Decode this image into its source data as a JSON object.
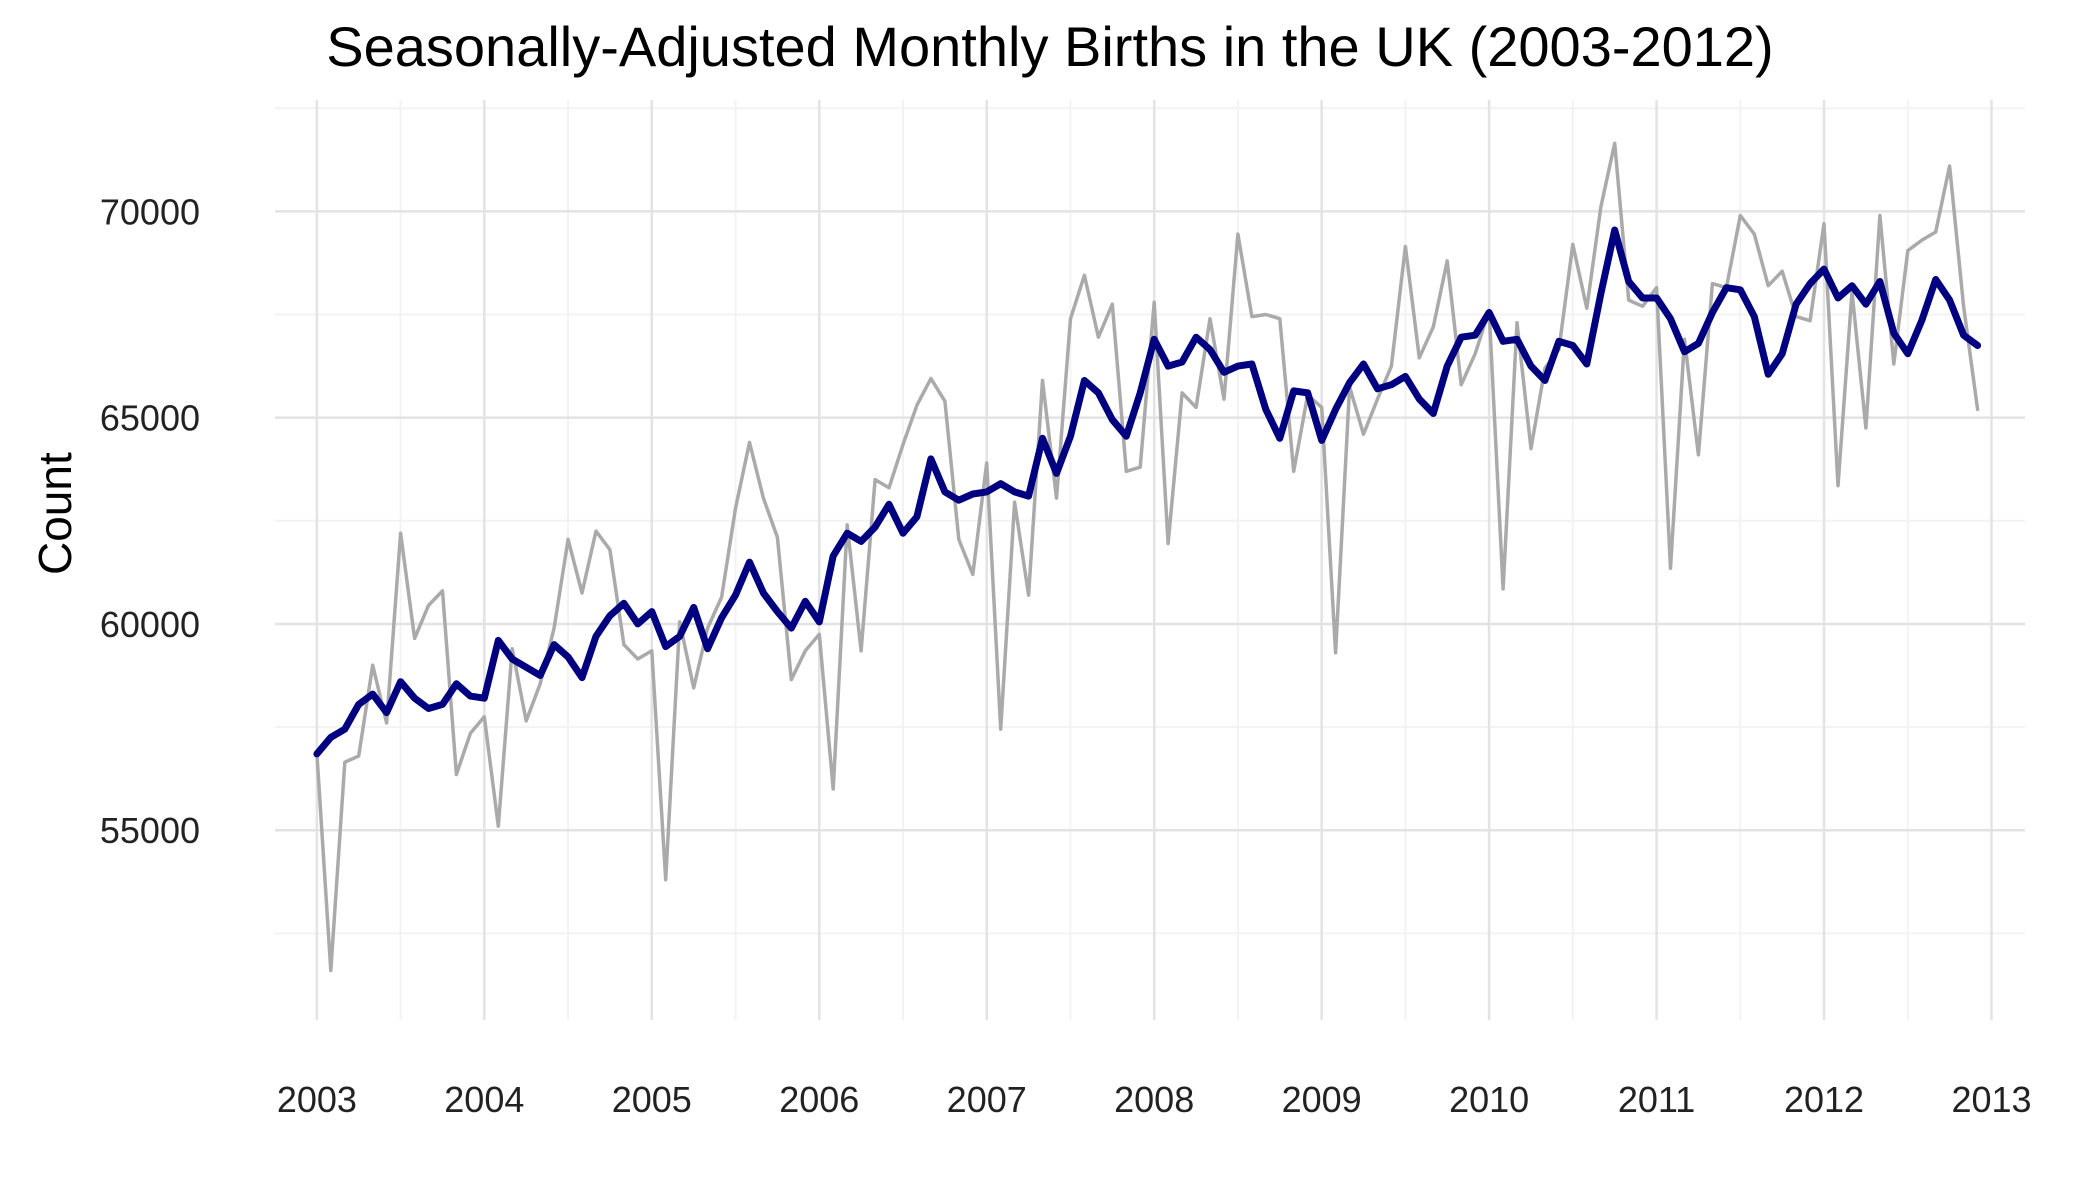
{
  "chart_data": {
    "type": "line",
    "title": "Seasonally-Adjusted Monthly Births in the UK (2003-2012)",
    "xlabel": "",
    "ylabel": "Count",
    "xlim": [
      2002.75,
      2013.2
    ],
    "ylim": [
      50400,
      72700
    ],
    "x_ticks": [
      "2003",
      "2004",
      "2005",
      "2006",
      "2007",
      "2008",
      "2009",
      "2010",
      "2011",
      "2012",
      "2013"
    ],
    "y_ticks": [
      "55000",
      "60000",
      "65000",
      "70000"
    ],
    "grid": true,
    "legend": "none",
    "start_year": 2003,
    "series": [
      {
        "role": "raw",
        "color": "#aaaaaa",
        "values": [
          56850,
          51600,
          56650,
          56800,
          59000,
          57600,
          62200,
          59650,
          60450,
          60800,
          56350,
          57350,
          57750,
          55100,
          59400,
          57650,
          58550,
          59900,
          62050,
          60750,
          62250,
          61800,
          59500,
          59150,
          59350,
          53800,
          60050,
          58450,
          59900,
          60650,
          62800,
          64400,
          63050,
          62100,
          58650,
          59350,
          59750,
          56000,
          62400,
          59350,
          63500,
          63300,
          64350,
          65300,
          65950,
          65400,
          62050,
          61200,
          63900,
          57450,
          62950,
          60700,
          65900,
          63050,
          67400,
          68450,
          66950,
          67750,
          63700,
          63800,
          67800,
          61950,
          65600,
          65250,
          67400,
          65450,
          69450,
          67450,
          67500,
          67400,
          63700,
          65550,
          65250,
          59300,
          65750,
          64600,
          65450,
          66250,
          69150,
          66450,
          67200,
          68800,
          65800,
          66550,
          67600,
          60850,
          67300,
          64250,
          66200,
          66650,
          69200,
          67650,
          70100,
          71650,
          67850,
          67700,
          68150,
          61350,
          66900,
          64100,
          68250,
          68150,
          69900,
          69450,
          68200,
          68550,
          67450,
          67350,
          69700,
          63350,
          68050,
          64750,
          69900,
          66300,
          69050,
          69300,
          69500,
          71100,
          67700,
          65200
        ]
      },
      {
        "role": "adjusted",
        "color": "#000080",
        "values": [
          56850,
          57250,
          57450,
          58050,
          58300,
          57850,
          58600,
          58200,
          57950,
          58050,
          58550,
          58250,
          58200,
          59600,
          59150,
          58950,
          58750,
          59500,
          59200,
          58700,
          59700,
          60200,
          60500,
          60000,
          60300,
          59450,
          59700,
          60400,
          59400,
          60150,
          60700,
          61500,
          60750,
          60300,
          59900,
          60550,
          60050,
          61650,
          62200,
          62000,
          62350,
          62900,
          62200,
          62600,
          64000,
          63200,
          63000,
          63150,
          63200,
          63400,
          63200,
          63100,
          64500,
          63650,
          64550,
          65900,
          65600,
          64950,
          64550,
          65600,
          66900,
          66250,
          66350,
          66950,
          66650,
          66100,
          66250,
          66300,
          65200,
          64500,
          65650,
          65600,
          64450,
          65200,
          65850,
          66300,
          65700,
          65800,
          66000,
          65450,
          65100,
          66250,
          66950,
          67000,
          67550,
          66850,
          66900,
          66250,
          65900,
          66850,
          66750,
          66300,
          68000,
          69550,
          68300,
          67900,
          67900,
          67400,
          66600,
          66800,
          67550,
          68150,
          68100,
          67450,
          66050,
          66550,
          67750,
          68250,
          68600,
          67900,
          68200,
          67750,
          68300,
          67050,
          66550,
          67350,
          68350,
          67850,
          67000,
          66750
        ]
      }
    ]
  }
}
